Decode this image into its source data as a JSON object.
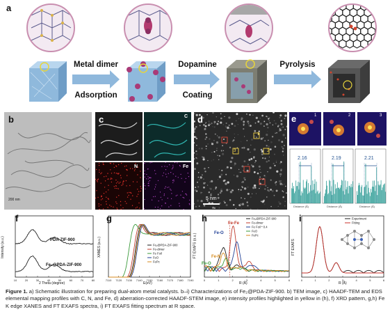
{
  "panel_a": {
    "label": "a",
    "step1_line1": "Metal dimer",
    "step1_line2": "Adsorption",
    "step2_line1": "Dopamine",
    "step2_line2": "Coating",
    "step3_line1": "Pyrolysis"
  },
  "panel_b": {
    "label": "b",
    "scalebar": "200 nm"
  },
  "panel_c": {
    "label": "c",
    "tag_c": "C",
    "tag_n": "N",
    "tag_fe": "Fe"
  },
  "panel_d": {
    "label": "d",
    "scalebar": "5 nm",
    "markers": [
      "1",
      "2",
      "3"
    ]
  },
  "panel_e": {
    "label": "e",
    "frames": [
      "1",
      "2",
      "3"
    ],
    "distances": [
      "2.16",
      "2.19",
      "2.21"
    ],
    "xlabel": "Distance (Å)"
  },
  "panel_f": {
    "label": "f",
    "ylabel": "Intensity (a.u.)",
    "xlabel": "2 Theta (degree)",
    "series_top": "PDA-ZIF-900",
    "series_bottom": "Fe₂@PDA-ZIF-900",
    "xticks": [
      "10",
      "20",
      "30",
      "40",
      "50",
      "60",
      "70",
      "80"
    ]
  },
  "panel_g": {
    "label": "g",
    "ylabel": "XANES (a.u.)",
    "xlabel": "E(eV)",
    "legend": [
      "Fe₂@PDA-ZIF-900",
      "Fe-dimer",
      "Fe Foil",
      "FeO",
      "FePc"
    ],
    "xticks": [
      "7110",
      "7120",
      "7130",
      "7140",
      "7150",
      "7160",
      "7170",
      "7180",
      "7190"
    ]
  },
  "panel_h": {
    "label": "h",
    "ylabel": "FT EXAFS (a.u.)",
    "xlabel": "R (Å)",
    "legend": [
      "Fe₂@PDA-ZIF-900",
      "Fe-dimer",
      "Fe Foil * 0.4",
      "FeO",
      "FePc"
    ],
    "annotations": [
      "Fe-O",
      "Fe-Fe",
      "Fe-N",
      "Fe-O"
    ],
    "xticks": [
      "0",
      "1",
      "2",
      "3",
      "4",
      "5",
      "6"
    ]
  },
  "panel_i": {
    "label": "i",
    "ylabel": "FT EXAFS",
    "xlabel": "R (Å)",
    "legend": [
      "Experiment",
      "Fitting"
    ],
    "xticks": [
      "0",
      "1",
      "2",
      "3",
      "4",
      "5",
      "6"
    ]
  },
  "caption": {
    "figure_label": "Figure 1.",
    "text": "a) Schematic illustration for preparing dual-atom metal catalysts. b–i) Characterizations of Fe₂@PDA-ZIF-900. b) TEM image, c) HAADF-TEM and EDS elemental mapping profiles with C, N, and Fe, d) aberration-corrected HAADF-STEM image, e) intensity profiles highlighted in yellow in (h), f) XRD pattern, g,h) Fe K edge XANES and FT EXAFS spectra, i) FT EXAFS fitting spectrum at R space."
  },
  "colors": {
    "cube_blue": "#8fb9dc",
    "cube_dark": "#6e6e6e",
    "teal_map": "#34c6c0",
    "red_map": "#e0302a",
    "purple_map": "#c04bd3",
    "profile_teal": "#2e9c96",
    "fit_red": "#c8312b",
    "arrow_blue": "#8fb8dc"
  }
}
